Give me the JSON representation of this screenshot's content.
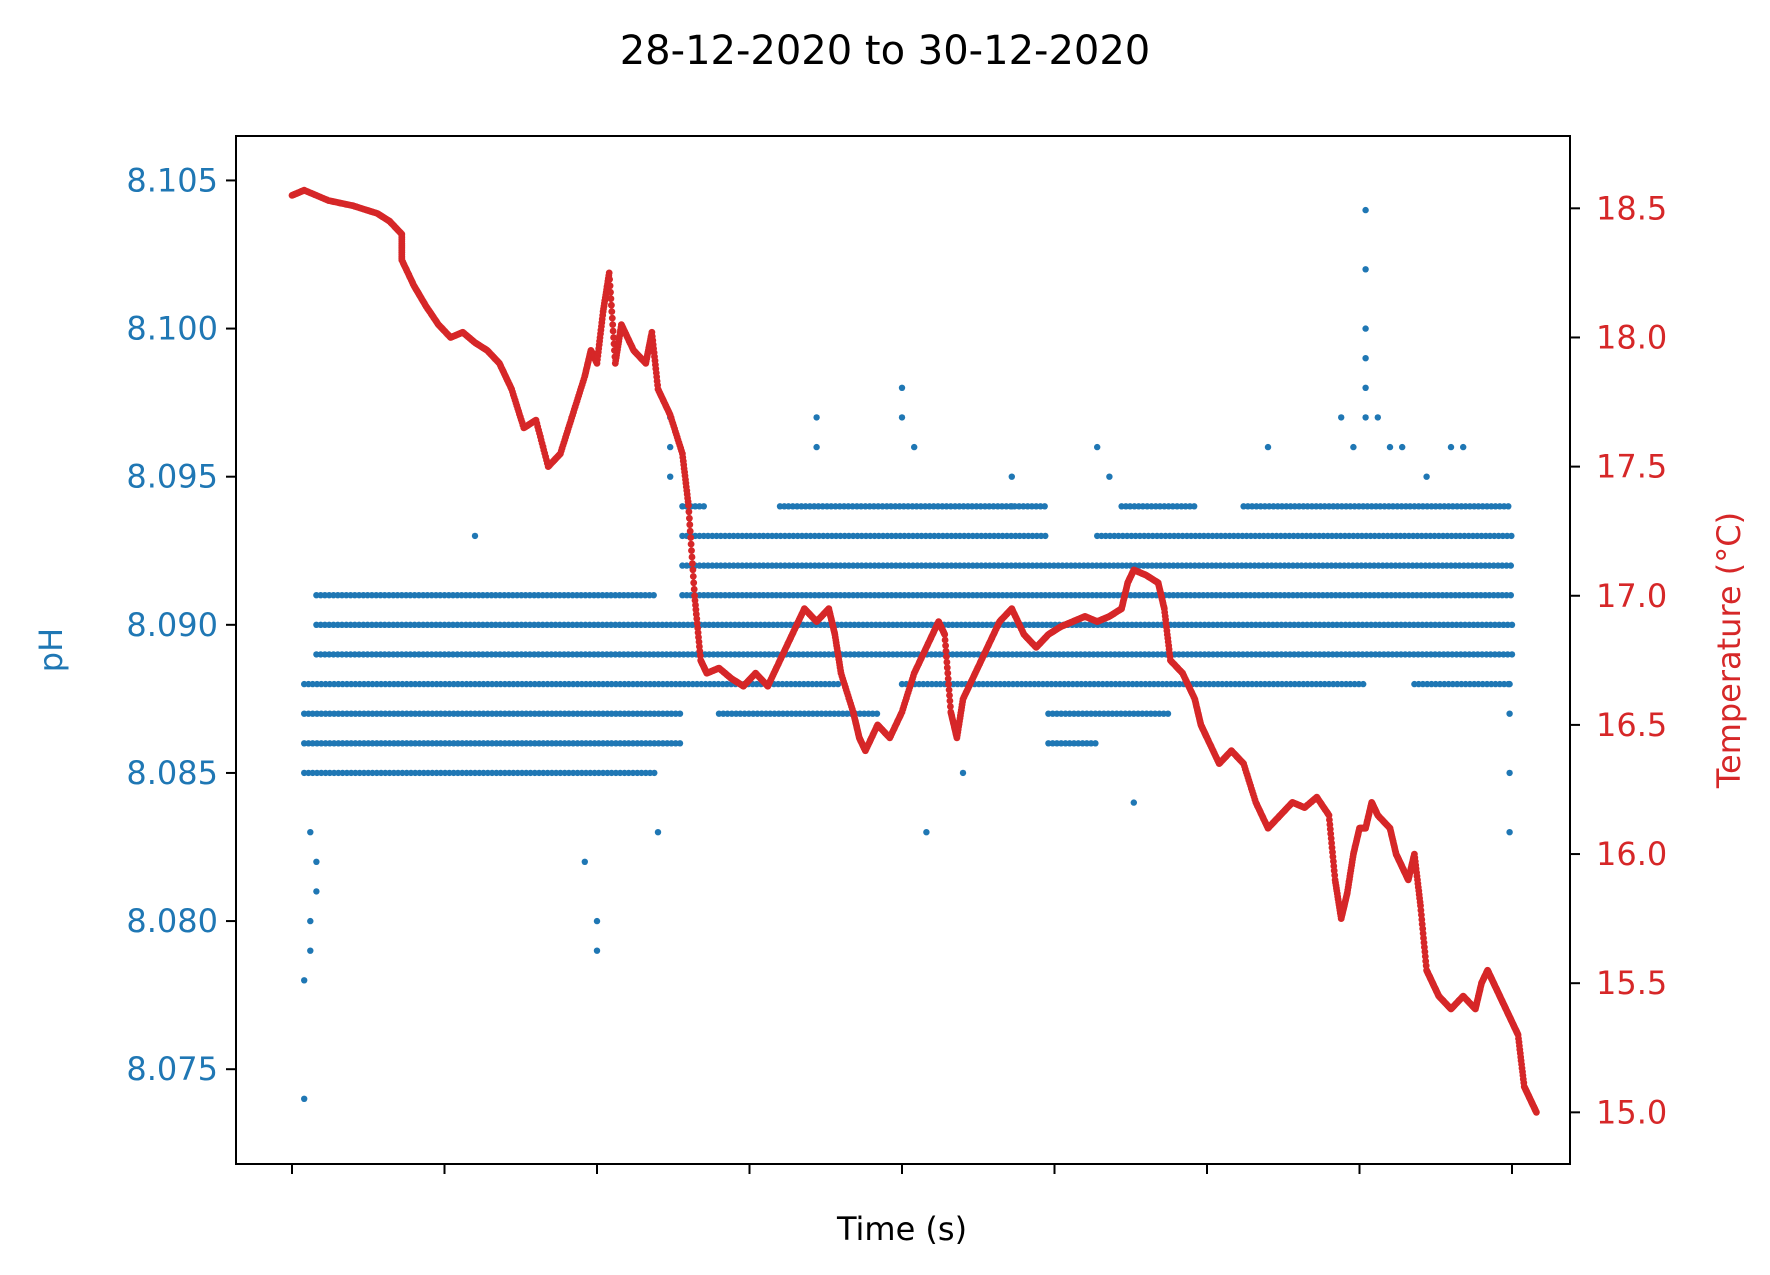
{
  "chart_data": {
    "type": "scatter",
    "title": "28-12-2020 to 30-12-2020",
    "xlabel": "Time (s)",
    "ylabel_left": "pH",
    "ylabel_right": "Temperature (°C)",
    "x_tick_count": 9,
    "x_tick_labels_shown": false,
    "y_left": {
      "ylim": [
        8.0718,
        8.1065
      ],
      "ticks": [
        8.075,
        8.08,
        8.085,
        8.09,
        8.095,
        8.1,
        8.105
      ],
      "tick_labels": [
        "8.075",
        "8.080",
        "8.085",
        "8.090",
        "8.095",
        "8.100",
        "8.105"
      ]
    },
    "y_right": {
      "ylim": [
        14.8,
        18.78
      ],
      "ticks": [
        15.0,
        15.5,
        16.0,
        16.5,
        17.0,
        17.5,
        18.0,
        18.5
      ],
      "tick_labels": [
        "15.0",
        "15.5",
        "16.0",
        "16.5",
        "17.0",
        "17.5",
        "18.0",
        "18.5"
      ]
    },
    "colors": {
      "ph": "#1f77b4",
      "temperature": "#d62728",
      "axes": "#000000"
    },
    "grid": false,
    "legend": "none",
    "series": [
      {
        "axis": "left",
        "marker": "dot",
        "ph_band_ranges": [
          {
            "value": 8.093,
            "ranges": [
              [
                0.32,
                0.62
              ],
              [
                0.66,
                1.0
              ]
            ]
          },
          {
            "value": 8.092,
            "ranges": [
              [
                0.32,
                1.0
              ]
            ]
          },
          {
            "value": 8.091,
            "ranges": [
              [
                0.02,
                0.3
              ],
              [
                0.32,
                1.0
              ]
            ]
          },
          {
            "value": 8.09,
            "ranges": [
              [
                0.02,
                1.0
              ]
            ]
          },
          {
            "value": 8.089,
            "ranges": [
              [
                0.02,
                1.0
              ]
            ]
          },
          {
            "value": 8.088,
            "ranges": [
              [
                0.01,
                0.45
              ],
              [
                0.5,
                0.88
              ],
              [
                0.92,
                1.0
              ]
            ]
          },
          {
            "value": 8.087,
            "ranges": [
              [
                0.01,
                0.32
              ],
              [
                0.35,
                0.48
              ],
              [
                0.62,
                0.72
              ]
            ]
          },
          {
            "value": 8.086,
            "ranges": [
              [
                0.01,
                0.32
              ],
              [
                0.62,
                0.66
              ]
            ]
          },
          {
            "value": 8.085,
            "ranges": [
              [
                0.01,
                0.3
              ]
            ]
          },
          {
            "value": 8.094,
            "ranges": [
              [
                0.32,
                0.34
              ],
              [
                0.4,
                0.62
              ],
              [
                0.68,
                0.74
              ],
              [
                0.78,
                1.0
              ]
            ]
          }
        ],
        "points": [
          [
            0.01,
            8.074
          ],
          [
            0.01,
            8.078
          ],
          [
            0.015,
            8.079
          ],
          [
            0.015,
            8.08
          ],
          [
            0.02,
            8.081
          ],
          [
            0.02,
            8.082
          ],
          [
            0.015,
            8.083
          ],
          [
            0.25,
            8.079
          ],
          [
            0.25,
            8.08
          ],
          [
            0.24,
            8.082
          ],
          [
            0.3,
            8.083
          ],
          [
            0.31,
            8.095
          ],
          [
            0.31,
            8.096
          ],
          [
            0.31,
            8.097
          ],
          [
            0.15,
            8.093
          ],
          [
            0.43,
            8.096
          ],
          [
            0.43,
            8.097
          ],
          [
            0.5,
            8.097
          ],
          [
            0.5,
            8.098
          ],
          [
            0.51,
            8.096
          ],
          [
            0.59,
            8.094
          ],
          [
            0.59,
            8.095
          ],
          [
            0.66,
            8.096
          ],
          [
            0.67,
            8.095
          ],
          [
            0.8,
            8.096
          ],
          [
            0.86,
            8.097
          ],
          [
            0.87,
            8.096
          ],
          [
            0.88,
            8.097
          ],
          [
            0.88,
            8.098
          ],
          [
            0.88,
            8.099
          ],
          [
            0.88,
            8.1
          ],
          [
            0.88,
            8.102
          ],
          [
            0.88,
            8.104
          ],
          [
            0.89,
            8.097
          ],
          [
            0.9,
            8.096
          ],
          [
            0.91,
            8.096
          ],
          [
            0.93,
            8.095
          ],
          [
            0.95,
            8.096
          ],
          [
            0.96,
            8.096
          ],
          [
            0.998,
            8.083
          ],
          [
            0.998,
            8.085
          ],
          [
            0.998,
            8.087
          ],
          [
            0.998,
            8.088
          ],
          [
            0.69,
            8.084
          ],
          [
            0.52,
            8.083
          ],
          [
            0.55,
            8.085
          ]
        ]
      },
      {
        "name": "Temperature",
        "axis": "right",
        "marker": "dot",
        "points": [
          [
            0.0,
            18.55
          ],
          [
            0.01,
            18.57
          ],
          [
            0.03,
            18.53
          ],
          [
            0.05,
            18.51
          ],
          [
            0.07,
            18.48
          ],
          [
            0.08,
            18.45
          ],
          [
            0.09,
            18.4
          ],
          [
            0.09,
            18.3
          ],
          [
            0.1,
            18.2
          ],
          [
            0.11,
            18.12
          ],
          [
            0.12,
            18.05
          ],
          [
            0.13,
            18.0
          ],
          [
            0.14,
            18.02
          ],
          [
            0.15,
            17.98
          ],
          [
            0.16,
            17.95
          ],
          [
            0.17,
            17.9
          ],
          [
            0.18,
            17.8
          ],
          [
            0.19,
            17.65
          ],
          [
            0.2,
            17.68
          ],
          [
            0.21,
            17.5
          ],
          [
            0.22,
            17.55
          ],
          [
            0.23,
            17.7
          ],
          [
            0.24,
            17.85
          ],
          [
            0.245,
            17.95
          ],
          [
            0.25,
            17.9
          ],
          [
            0.255,
            18.1
          ],
          [
            0.26,
            18.25
          ],
          [
            0.265,
            17.9
          ],
          [
            0.27,
            18.05
          ],
          [
            0.28,
            17.95
          ],
          [
            0.29,
            17.9
          ],
          [
            0.295,
            18.02
          ],
          [
            0.3,
            17.8
          ],
          [
            0.31,
            17.7
          ],
          [
            0.32,
            17.55
          ],
          [
            0.325,
            17.35
          ],
          [
            0.33,
            17.0
          ],
          [
            0.335,
            16.75
          ],
          [
            0.34,
            16.7
          ],
          [
            0.35,
            16.72
          ],
          [
            0.36,
            16.68
          ],
          [
            0.37,
            16.65
          ],
          [
            0.38,
            16.7
          ],
          [
            0.39,
            16.65
          ],
          [
            0.4,
            16.75
          ],
          [
            0.41,
            16.85
          ],
          [
            0.42,
            16.95
          ],
          [
            0.43,
            16.9
          ],
          [
            0.44,
            16.95
          ],
          [
            0.445,
            16.85
          ],
          [
            0.45,
            16.7
          ],
          [
            0.46,
            16.55
          ],
          [
            0.465,
            16.45
          ],
          [
            0.47,
            16.4
          ],
          [
            0.48,
            16.5
          ],
          [
            0.49,
            16.45
          ],
          [
            0.5,
            16.55
          ],
          [
            0.51,
            16.7
          ],
          [
            0.52,
            16.8
          ],
          [
            0.53,
            16.9
          ],
          [
            0.535,
            16.85
          ],
          [
            0.54,
            16.55
          ],
          [
            0.545,
            16.45
          ],
          [
            0.55,
            16.6
          ],
          [
            0.56,
            16.7
          ],
          [
            0.57,
            16.8
          ],
          [
            0.58,
            16.9
          ],
          [
            0.59,
            16.95
          ],
          [
            0.6,
            16.85
          ],
          [
            0.61,
            16.8
          ],
          [
            0.62,
            16.85
          ],
          [
            0.63,
            16.88
          ],
          [
            0.64,
            16.9
          ],
          [
            0.65,
            16.92
          ],
          [
            0.66,
            16.9
          ],
          [
            0.67,
            16.92
          ],
          [
            0.68,
            16.95
          ],
          [
            0.685,
            17.05
          ],
          [
            0.69,
            17.1
          ],
          [
            0.7,
            17.08
          ],
          [
            0.71,
            17.05
          ],
          [
            0.715,
            16.95
          ],
          [
            0.72,
            16.75
          ],
          [
            0.73,
            16.7
          ],
          [
            0.74,
            16.6
          ],
          [
            0.745,
            16.5
          ],
          [
            0.75,
            16.45
          ],
          [
            0.76,
            16.35
          ],
          [
            0.77,
            16.4
          ],
          [
            0.78,
            16.35
          ],
          [
            0.79,
            16.2
          ],
          [
            0.8,
            16.1
          ],
          [
            0.81,
            16.15
          ],
          [
            0.82,
            16.2
          ],
          [
            0.83,
            16.18
          ],
          [
            0.84,
            16.22
          ],
          [
            0.85,
            16.15
          ],
          [
            0.855,
            15.9
          ],
          [
            0.86,
            15.75
          ],
          [
            0.865,
            15.85
          ],
          [
            0.87,
            16.0
          ],
          [
            0.875,
            16.1
          ],
          [
            0.88,
            16.1
          ],
          [
            0.885,
            16.2
          ],
          [
            0.89,
            16.15
          ],
          [
            0.9,
            16.1
          ],
          [
            0.905,
            16.0
          ],
          [
            0.91,
            15.95
          ],
          [
            0.915,
            15.9
          ],
          [
            0.92,
            16.0
          ],
          [
            0.925,
            15.8
          ],
          [
            0.93,
            15.55
          ],
          [
            0.935,
            15.5
          ],
          [
            0.94,
            15.45
          ],
          [
            0.95,
            15.4
          ],
          [
            0.96,
            15.45
          ],
          [
            0.97,
            15.4
          ],
          [
            0.975,
            15.5
          ],
          [
            0.98,
            15.55
          ],
          [
            0.985,
            15.5
          ],
          [
            0.99,
            15.45
          ],
          [
            0.995,
            15.4
          ],
          [
            1.0,
            15.35
          ],
          [
            1.005,
            15.3
          ],
          [
            1.01,
            15.1
          ],
          [
            1.015,
            15.05
          ],
          [
            1.02,
            15.0
          ]
        ]
      }
    ]
  }
}
